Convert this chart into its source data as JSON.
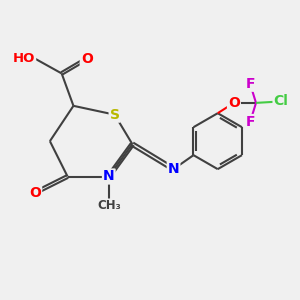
{
  "bg_color": "#f0f0f0",
  "atom_colors": {
    "C": "#404040",
    "H": "#808080",
    "O": "#ff0000",
    "N": "#0000ff",
    "S": "#b8b800",
    "F": "#cc00cc",
    "Cl": "#44cc44"
  },
  "bond_color": "#404040",
  "bond_width": 1.5,
  "font_size": 9.5,
  "title": ""
}
